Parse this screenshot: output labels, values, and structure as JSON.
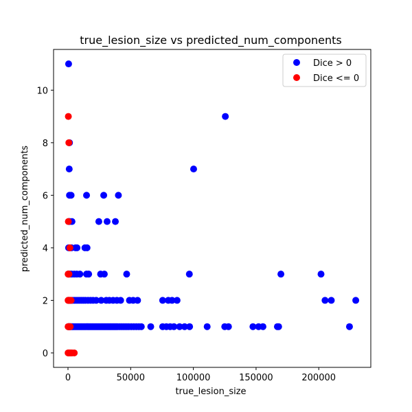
{
  "chart_data": {
    "type": "scatter",
    "title": "true_lesion_size vs predicted_num_components",
    "xlabel": "true_lesion_size",
    "ylabel": "predicted_num_components",
    "xlim": [
      -11500,
      241500
    ],
    "ylim": [
      -0.55,
      11.55
    ],
    "xticks": [
      0,
      50000,
      100000,
      150000,
      200000
    ],
    "xtick_labels": [
      "0",
      "50000",
      "100000",
      "150000",
      "200000"
    ],
    "yticks": [
      0,
      2,
      4,
      6,
      8,
      10
    ],
    "ytick_labels": [
      "0",
      "2",
      "4",
      "6",
      "8",
      "10"
    ],
    "grid": false,
    "legend_position": "top-right",
    "series": [
      {
        "name": "Dice > 0",
        "color": "#0000ff",
        "points": [
          [
            500,
            11
          ],
          [
            125500,
            9
          ],
          [
            1200,
            8
          ],
          [
            1000,
            7
          ],
          [
            100200,
            7
          ],
          [
            1200,
            6
          ],
          [
            2500,
            6
          ],
          [
            14800,
            6
          ],
          [
            28500,
            6
          ],
          [
            40200,
            6
          ],
          [
            600,
            5
          ],
          [
            1500,
            5
          ],
          [
            3200,
            5
          ],
          [
            24600,
            5
          ],
          [
            31200,
            5
          ],
          [
            37800,
            5
          ],
          [
            500,
            4
          ],
          [
            1500,
            4
          ],
          [
            2800,
            4
          ],
          [
            6000,
            4
          ],
          [
            7200,
            4
          ],
          [
            13500,
            4
          ],
          [
            15200,
            4
          ],
          [
            300,
            3
          ],
          [
            1000,
            3
          ],
          [
            2000,
            3
          ],
          [
            3000,
            3
          ],
          [
            5000,
            3
          ],
          [
            7000,
            3
          ],
          [
            9500,
            3
          ],
          [
            14800,
            3
          ],
          [
            16500,
            3
          ],
          [
            26000,
            3
          ],
          [
            29000,
            3
          ],
          [
            46800,
            3
          ],
          [
            96800,
            3
          ],
          [
            169800,
            3
          ],
          [
            201800,
            3
          ],
          [
            300,
            2
          ],
          [
            800,
            2
          ],
          [
            1500,
            2
          ],
          [
            2500,
            2
          ],
          [
            3500,
            2
          ],
          [
            5000,
            2
          ],
          [
            6500,
            2
          ],
          [
            8000,
            2
          ],
          [
            9500,
            2
          ],
          [
            11000,
            2
          ],
          [
            12500,
            2
          ],
          [
            14000,
            2
          ],
          [
            16000,
            2
          ],
          [
            18000,
            2
          ],
          [
            20000,
            2
          ],
          [
            22500,
            2
          ],
          [
            26500,
            2
          ],
          [
            30500,
            2
          ],
          [
            33000,
            2
          ],
          [
            36000,
            2
          ],
          [
            39000,
            2
          ],
          [
            42000,
            2
          ],
          [
            49000,
            2
          ],
          [
            52000,
            2
          ],
          [
            55500,
            2
          ],
          [
            75500,
            2
          ],
          [
            80000,
            2
          ],
          [
            83000,
            2
          ],
          [
            87000,
            2
          ],
          [
            205000,
            2
          ],
          [
            210000,
            2
          ],
          [
            229500,
            2
          ],
          [
            200,
            1
          ],
          [
            600,
            1
          ],
          [
            1000,
            1
          ],
          [
            1500,
            1
          ],
          [
            2000,
            1
          ],
          [
            2800,
            1
          ],
          [
            3600,
            1
          ],
          [
            4500,
            1
          ],
          [
            5500,
            1
          ],
          [
            6500,
            1
          ],
          [
            7500,
            1
          ],
          [
            8500,
            1
          ],
          [
            9500,
            1
          ],
          [
            10500,
            1
          ],
          [
            11500,
            1
          ],
          [
            12500,
            1
          ],
          [
            13500,
            1
          ],
          [
            14500,
            1
          ],
          [
            15500,
            1
          ],
          [
            16500,
            1
          ],
          [
            17500,
            1
          ],
          [
            18500,
            1
          ],
          [
            19500,
            1
          ],
          [
            20500,
            1
          ],
          [
            21500,
            1
          ],
          [
            22500,
            1
          ],
          [
            23500,
            1
          ],
          [
            24500,
            1
          ],
          [
            25500,
            1
          ],
          [
            26500,
            1
          ],
          [
            27500,
            1
          ],
          [
            28500,
            1
          ],
          [
            29500,
            1
          ],
          [
            30500,
            1
          ],
          [
            31500,
            1
          ],
          [
            32500,
            1
          ],
          [
            33500,
            1
          ],
          [
            34500,
            1
          ],
          [
            35500,
            1
          ],
          [
            36500,
            1
          ],
          [
            37500,
            1
          ],
          [
            38500,
            1
          ],
          [
            39500,
            1
          ],
          [
            41000,
            1
          ],
          [
            42500,
            1
          ],
          [
            44000,
            1
          ],
          [
            45500,
            1
          ],
          [
            47000,
            1
          ],
          [
            48500,
            1
          ],
          [
            50500,
            1
          ],
          [
            52500,
            1
          ],
          [
            54500,
            1
          ],
          [
            56500,
            1
          ],
          [
            58500,
            1
          ],
          [
            66000,
            1
          ],
          [
            75500,
            1
          ],
          [
            78500,
            1
          ],
          [
            81500,
            1
          ],
          [
            84500,
            1
          ],
          [
            89000,
            1
          ],
          [
            93000,
            1
          ],
          [
            97000,
            1
          ],
          [
            111000,
            1
          ],
          [
            125000,
            1
          ],
          [
            128000,
            1
          ],
          [
            147500,
            1
          ],
          [
            152000,
            1
          ],
          [
            155500,
            1
          ],
          [
            167000,
            1
          ],
          [
            168000,
            1
          ],
          [
            224500,
            1
          ]
        ]
      },
      {
        "name": "Dice <= 0",
        "color": "#ff0000",
        "points": [
          [
            300,
            9
          ],
          [
            700,
            8
          ],
          [
            300,
            5
          ],
          [
            1500,
            4
          ],
          [
            100,
            3
          ],
          [
            400,
            3
          ],
          [
            800,
            3
          ],
          [
            100,
            2
          ],
          [
            400,
            2
          ],
          [
            800,
            2
          ],
          [
            1200,
            2
          ],
          [
            1800,
            2
          ],
          [
            2500,
            2
          ],
          [
            100,
            1
          ],
          [
            400,
            1
          ],
          [
            800,
            1
          ],
          [
            1200,
            1
          ],
          [
            1800,
            1
          ],
          [
            100,
            0
          ],
          [
            500,
            0
          ],
          [
            1000,
            0
          ],
          [
            1600,
            0
          ],
          [
            2400,
            0
          ],
          [
            3300,
            0
          ],
          [
            5000,
            0
          ]
        ]
      }
    ]
  }
}
